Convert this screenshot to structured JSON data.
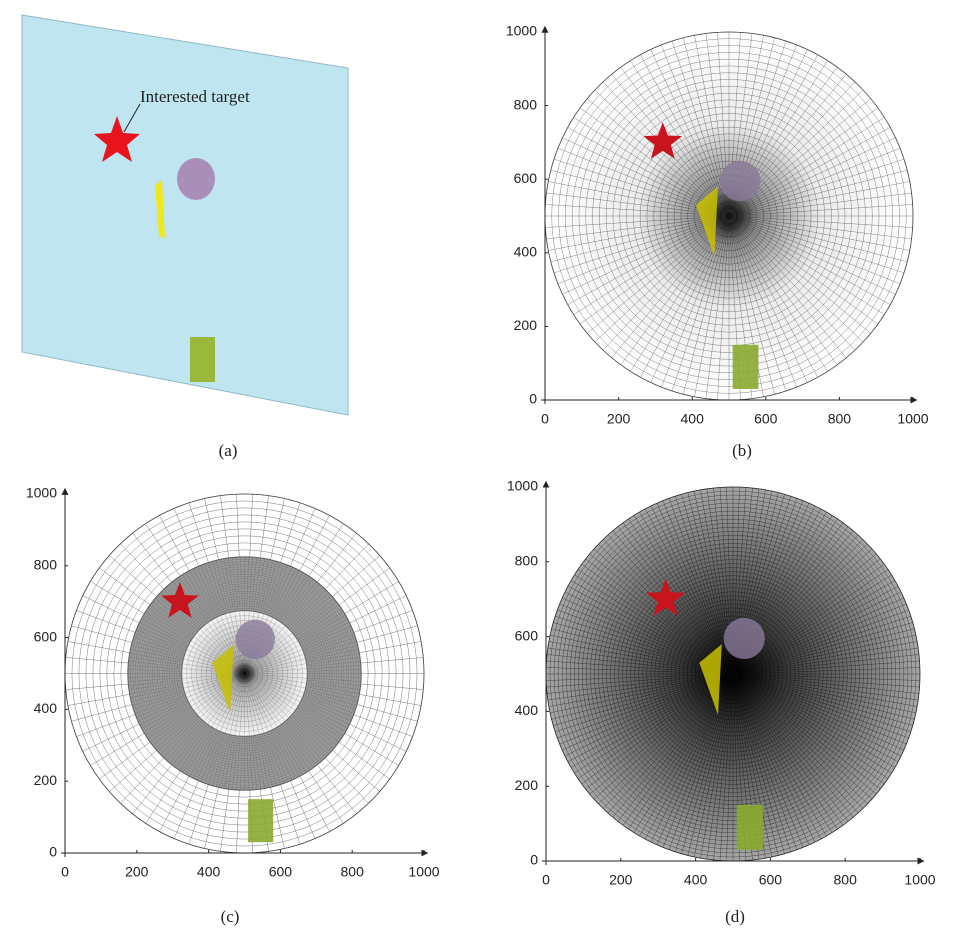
{
  "panels": [
    {
      "caption": "(a)",
      "annotation": "Interested target"
    },
    {
      "caption": "(b)",
      "xticks": [
        0,
        200,
        400,
        600,
        800,
        1000
      ],
      "yticks": [
        0,
        200,
        400,
        600,
        800,
        1000
      ]
    },
    {
      "caption": "(c)",
      "xticks": [
        0,
        200,
        400,
        600,
        800,
        1000
      ],
      "yticks": [
        0,
        200,
        400,
        600,
        800,
        1000
      ]
    },
    {
      "caption": "(d)",
      "xticks": [
        0,
        200,
        400,
        600,
        800,
        1000
      ],
      "yticks": [
        0,
        200,
        400,
        600,
        800,
        1000
      ]
    }
  ]
}
